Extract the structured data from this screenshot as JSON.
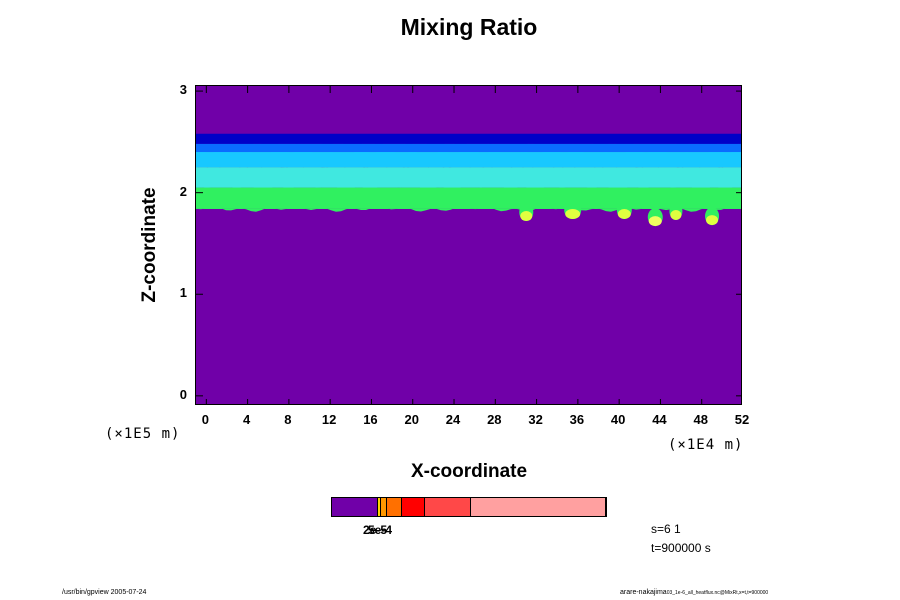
{
  "chart_data": {
    "type": "heatmap",
    "title": "Mixing Ratio",
    "xlabel": "X-coordinate",
    "ylabel": "Z-coordinate",
    "x_unit": "(×1E4 m)",
    "y_unit": "(×1E5 m)",
    "x_ticks": [
      "0",
      "4",
      "8",
      "12",
      "16",
      "20",
      "24",
      "28",
      "32",
      "36",
      "40",
      "44",
      "48",
      "52"
    ],
    "y_ticks": [
      "0",
      "1",
      "2",
      "3"
    ],
    "xlim": [
      -1,
      52
    ],
    "ylim": [
      -0.1,
      3.05
    ],
    "background_color": "#7000a8",
    "layers": [
      {
        "color": "#0000c8",
        "z_bottom": 2.48,
        "z_top": 2.58
      },
      {
        "color": "#0a6cff",
        "z_bottom": 2.4,
        "z_top": 2.48
      },
      {
        "color": "#18c8ff",
        "z_bottom": 2.25,
        "z_top": 2.4
      },
      {
        "color": "#40e8e0",
        "z_bottom": 2.05,
        "z_top": 2.25
      },
      {
        "color": "#30f060",
        "z_bottom": 1.84,
        "z_top": 2.05
      }
    ],
    "blobs": [
      {
        "x": 31.0,
        "z": 1.77,
        "color": "#e0ff40"
      },
      {
        "x": 35.5,
        "z": 1.79,
        "color": "#e0ff40"
      },
      {
        "x": 40.5,
        "z": 1.79,
        "color": "#e0ff40"
      },
      {
        "x": 43.5,
        "z": 1.72,
        "color": "#f0ff60"
      },
      {
        "x": 45.5,
        "z": 1.78,
        "color": "#e0ff40"
      },
      {
        "x": 49.0,
        "z": 1.73,
        "color": "#e0ff40"
      }
    ]
  },
  "colorbar": {
    "segments": [
      {
        "color": "#7000a8",
        "weight": 46
      },
      {
        "color": "#ffd200",
        "weight": 3
      },
      {
        "color": "#ff9800",
        "weight": 5
      },
      {
        "color": "#ff7000",
        "weight": 14
      },
      {
        "color": "#ff0000",
        "weight": 23
      },
      {
        "color": "#ff4848",
        "weight": 46
      },
      {
        "color": "#ffa0a0",
        "weight": 139
      }
    ],
    "tick_label_1": "2e-5",
    "tick_label_2": "5e-4"
  },
  "info": {
    "s_text": "s=6 1",
    "t_text": "t=900000 s"
  },
  "footer": {
    "left": "/usr/bin/gpview 2005-07-24",
    "right": "arare-nakajima",
    "right_small": "03_1e-6_all_heatflux.nc@MixRt,x=t,t=900000"
  }
}
